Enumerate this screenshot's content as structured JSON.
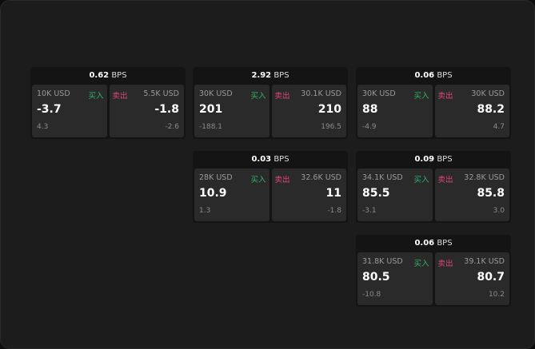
{
  "unit": "BPS",
  "colors": {
    "buy": "#2fb36b",
    "sell": "#e0457b"
  },
  "buy_label": "买入",
  "sell_label": "卖出",
  "cards": [
    {
      "spread": "0.62",
      "bid": {
        "qty": "10K USD",
        "price": "-3.7",
        "change": "4.3"
      },
      "ask": {
        "qty": "5.5K USD",
        "price": "-1.8",
        "change": "-2.6"
      }
    },
    {
      "spread": "2.92",
      "bid": {
        "qty": "30K USD",
        "price": "201",
        "change": "-188.1"
      },
      "ask": {
        "qty": "30.1K USD",
        "price": "210",
        "change": "196.5"
      }
    },
    {
      "spread": "0.06",
      "bid": {
        "qty": "30K USD",
        "price": "88",
        "change": "-4.9"
      },
      "ask": {
        "qty": "30K USD",
        "price": "88.2",
        "change": "4.7"
      }
    },
    {
      "spread": "0.03",
      "bid": {
        "qty": "28K USD",
        "price": "10.9",
        "change": "1.3"
      },
      "ask": {
        "qty": "32.6K USD",
        "price": "11",
        "change": "-1.8"
      }
    },
    {
      "spread": "0.09",
      "bid": {
        "qty": "34.1K USD",
        "price": "85.5",
        "change": "-3.1"
      },
      "ask": {
        "qty": "32.8K USD",
        "price": "85.8",
        "change": "3.0"
      }
    },
    {
      "spread": "0.06",
      "bid": {
        "qty": "31.8K USD",
        "price": "80.5",
        "change": "-10.8"
      },
      "ask": {
        "qty": "39.1K USD",
        "price": "80.7",
        "change": "10.2"
      }
    }
  ]
}
